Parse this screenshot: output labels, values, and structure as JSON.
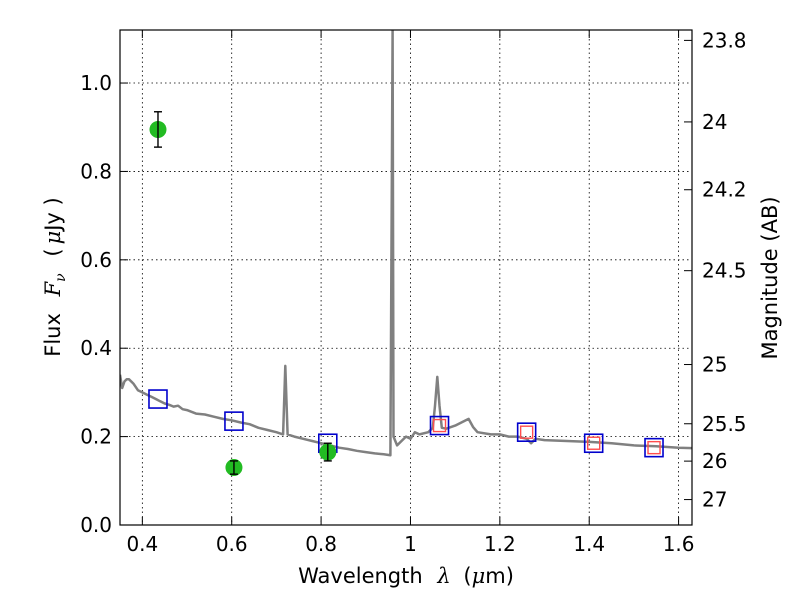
{
  "chart_data": {
    "type": "scatter",
    "title": "",
    "xlabel": {
      "prefix": "Wavelength",
      "symbol": "λ",
      "unit_open": "(",
      "unit_mu": "μ",
      "unit_rest": "m)"
    },
    "ylabel": {
      "prefix": "Flux",
      "symbol": "F",
      "symbol_sub": "ν",
      "unit_open": "(",
      "unit_mu": "μ",
      "unit_rest": "Jy )"
    },
    "y2label": "Magnitude (AB)",
    "xlim": [
      0.35,
      1.63
    ],
    "ylim": [
      0.0,
      1.12
    ],
    "grid": true,
    "x_ticks": [
      0.4,
      0.6,
      0.8,
      1.0,
      1.2,
      1.4,
      1.6
    ],
    "x_tick_labels": [
      "0.4",
      "0.6",
      "0.8",
      "1",
      "1.2",
      "1.4",
      "1.6"
    ],
    "y_ticks": [
      0.0,
      0.2,
      0.4,
      0.6,
      0.8,
      1.0
    ],
    "y_tick_labels": [
      "0.0",
      "0.2",
      "0.4",
      "0.6",
      "0.8",
      "1.0"
    ],
    "y2_tick_labels": [
      "23.8",
      "24",
      "24.2",
      "24.5",
      "25",
      "25.5",
      "26",
      "27"
    ],
    "y2_tick_magnitudes": [
      23.8,
      24,
      24.2,
      24.5,
      25,
      25.5,
      26,
      27
    ],
    "series": [
      {
        "kind": "spectrum",
        "color": "#808080",
        "points": [
          [
            0.35,
            0.34
          ],
          [
            0.355,
            0.31
          ],
          [
            0.36,
            0.325
          ],
          [
            0.365,
            0.33
          ],
          [
            0.37,
            0.33
          ],
          [
            0.38,
            0.32
          ],
          [
            0.39,
            0.305
          ],
          [
            0.4,
            0.3
          ],
          [
            0.41,
            0.295
          ],
          [
            0.42,
            0.29
          ],
          [
            0.43,
            0.285
          ],
          [
            0.44,
            0.28
          ],
          [
            0.45,
            0.275
          ],
          [
            0.46,
            0.272
          ],
          [
            0.47,
            0.268
          ],
          [
            0.48,
            0.27
          ],
          [
            0.49,
            0.262
          ],
          [
            0.5,
            0.26
          ],
          [
            0.52,
            0.252
          ],
          [
            0.54,
            0.25
          ],
          [
            0.56,
            0.245
          ],
          [
            0.58,
            0.24
          ],
          [
            0.6,
            0.237
          ],
          [
            0.62,
            0.232
          ],
          [
            0.64,
            0.228
          ],
          [
            0.66,
            0.22
          ],
          [
            0.68,
            0.215
          ],
          [
            0.7,
            0.21
          ],
          [
            0.715,
            0.205
          ],
          [
            0.72,
            0.36
          ],
          [
            0.725,
            0.205
          ],
          [
            0.74,
            0.2
          ],
          [
            0.76,
            0.195
          ],
          [
            0.78,
            0.19
          ],
          [
            0.8,
            0.185
          ],
          [
            0.82,
            0.18
          ],
          [
            0.84,
            0.175
          ],
          [
            0.86,
            0.172
          ],
          [
            0.88,
            0.168
          ],
          [
            0.9,
            0.165
          ],
          [
            0.92,
            0.162
          ],
          [
            0.94,
            0.16
          ],
          [
            0.955,
            0.158
          ],
          [
            0.96,
            1.12
          ],
          [
            0.962,
            0.2
          ],
          [
            0.97,
            0.18
          ],
          [
            0.98,
            0.19
          ],
          [
            0.99,
            0.2
          ],
          [
            1.0,
            0.195
          ],
          [
            1.01,
            0.21
          ],
          [
            1.02,
            0.205
          ],
          [
            1.04,
            0.21
          ],
          [
            1.05,
            0.22
          ],
          [
            1.055,
            0.27
          ],
          [
            1.06,
            0.335
          ],
          [
            1.065,
            0.27
          ],
          [
            1.07,
            0.22
          ],
          [
            1.08,
            0.218
          ],
          [
            1.1,
            0.225
          ],
          [
            1.12,
            0.235
          ],
          [
            1.13,
            0.24
          ],
          [
            1.14,
            0.222
          ],
          [
            1.15,
            0.21
          ],
          [
            1.18,
            0.205
          ],
          [
            1.2,
            0.205
          ],
          [
            1.22,
            0.2
          ],
          [
            1.24,
            0.2
          ],
          [
            1.26,
            0.195
          ],
          [
            1.27,
            0.185
          ],
          [
            1.28,
            0.195
          ],
          [
            1.3,
            0.192
          ],
          [
            1.35,
            0.19
          ],
          [
            1.4,
            0.188
          ],
          [
            1.45,
            0.185
          ],
          [
            1.5,
            0.18
          ],
          [
            1.55,
            0.178
          ],
          [
            1.6,
            0.175
          ],
          [
            1.63,
            0.174
          ]
        ]
      },
      {
        "kind": "model_bands",
        "marker": "square",
        "color": "#0000cc",
        "points": [
          [
            0.435,
            0.285
          ],
          [
            0.605,
            0.235
          ],
          [
            0.815,
            0.185
          ],
          [
            1.065,
            0.225
          ],
          [
            1.26,
            0.21
          ],
          [
            1.41,
            0.185
          ],
          [
            1.545,
            0.175
          ]
        ]
      },
      {
        "kind": "observed_nir",
        "marker": "square",
        "color": "#ff4d4d",
        "points": [
          [
            1.065,
            0.225
          ],
          [
            1.26,
            0.21
          ],
          [
            1.41,
            0.185
          ],
          [
            1.545,
            0.175
          ]
        ]
      },
      {
        "kind": "observed_optical",
        "marker": "circle",
        "color": "#22bb22",
        "points": [
          [
            0.435,
            0.895,
            0.04
          ],
          [
            0.605,
            0.13,
            0.015
          ],
          [
            0.815,
            0.165,
            0.02
          ]
        ]
      }
    ]
  }
}
